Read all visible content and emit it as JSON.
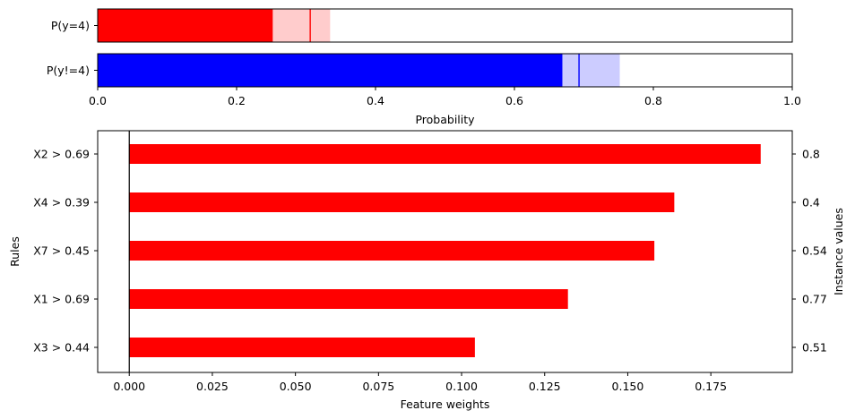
{
  "chart_data": [
    {
      "type": "bar",
      "orientation": "horizontal",
      "categories": [
        "P(y=4)",
        "P(y!=4)"
      ],
      "values": [
        0.252,
        0.669
      ],
      "interval_low": [
        0.252,
        0.669
      ],
      "interval_high": [
        0.334,
        0.751
      ],
      "point_estimate": [
        0.306,
        0.693
      ],
      "colors": [
        "#ff0000",
        "#0000ff"
      ],
      "interval_colors": [
        "#ffcccc",
        "#ccccff"
      ],
      "xlabel": "Probability",
      "xlim": [
        0,
        1
      ],
      "xticks": [
        "0.0",
        "0.2",
        "0.4",
        "0.6",
        "0.8",
        "1.0"
      ]
    },
    {
      "type": "bar",
      "orientation": "horizontal",
      "categories": [
        "X2 > 0.69",
        "X4 > 0.39",
        "X7 > 0.45",
        "X1 > 0.69",
        "X3 > 0.44"
      ],
      "values": [
        0.19,
        0.164,
        0.158,
        0.132,
        0.104
      ],
      "instance_values": [
        "0.8",
        "0.4",
        "0.54",
        "0.77",
        "0.51"
      ],
      "color": "#ff0000",
      "xlabel": "Feature weights",
      "ylabel": "Rules",
      "ylabel_right": "Instance values",
      "xlim": [
        -0.0095,
        0.1995
      ],
      "xticks": [
        "0.000",
        "0.025",
        "0.050",
        "0.075",
        "0.100",
        "0.125",
        "0.150",
        "0.175"
      ]
    }
  ]
}
